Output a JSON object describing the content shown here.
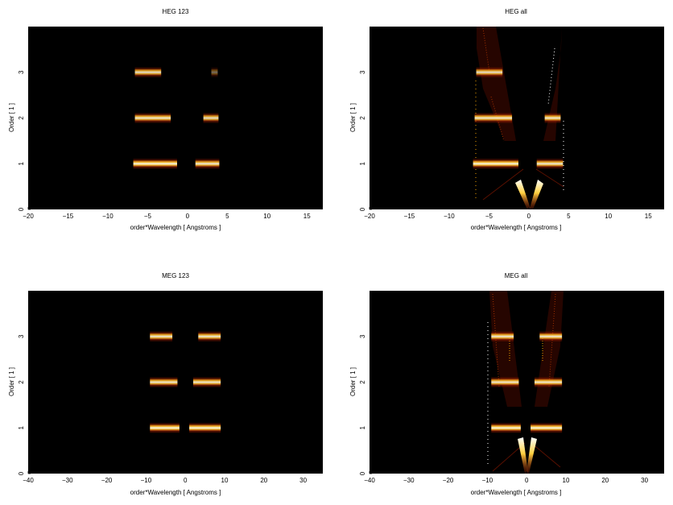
{
  "chart_data": [
    {
      "type": "heatmap",
      "title": "HEG 123",
      "xlabel": "order*Wavelength [ Angstroms ]",
      "ylabel": "Order [ 1 ]",
      "xlim": [
        -20,
        17
      ],
      "ylim": [
        0,
        4
      ],
      "xticks": [
        -20,
        -15,
        -10,
        -5,
        0,
        5,
        10,
        15
      ],
      "yticks": [
        0,
        1,
        2,
        3
      ],
      "colormap": [
        "#000000",
        "#5a0000",
        "#b02000",
        "#f07000",
        "#ffd040",
        "#ffffff"
      ],
      "bands": [
        {
          "order": 1,
          "x_start": -6.8,
          "x_end": -1.3,
          "intensity": 0.95
        },
        {
          "order": 1,
          "x_start": 1.0,
          "x_end": 4.0,
          "intensity": 0.9
        },
        {
          "order": 2,
          "x_start": -6.6,
          "x_end": -2.1,
          "intensity": 0.9
        },
        {
          "order": 2,
          "x_start": 2.0,
          "x_end": 3.9,
          "intensity": 0.85
        },
        {
          "order": 3,
          "x_start": -6.6,
          "x_end": -3.3,
          "intensity": 0.85
        },
        {
          "order": 3,
          "x_start": 3.0,
          "x_end": 3.8,
          "intensity": 0.4
        }
      ]
    },
    {
      "type": "heatmap",
      "title": "HEG all",
      "xlabel": "order*Wavelength [ Angstroms ]",
      "ylabel": "Order [ 1 ]",
      "xlim": [
        -20,
        17
      ],
      "ylim": [
        0,
        4
      ],
      "xticks": [
        -20,
        -15,
        -10,
        -5,
        0,
        5,
        10,
        15
      ],
      "yticks": [
        0,
        1,
        2,
        3
      ],
      "colormap": [
        "#000000",
        "#5a0000",
        "#b02000",
        "#f07000",
        "#ffd040",
        "#ffffff"
      ],
      "bands": [
        {
          "order": 1,
          "x_start": -7.0,
          "x_end": -1.3,
          "intensity": 0.95
        },
        {
          "order": 1,
          "x_start": 1.0,
          "x_end": 4.3,
          "intensity": 0.9
        },
        {
          "order": 2,
          "x_start": -6.8,
          "x_end": -2.1,
          "intensity": 0.9
        },
        {
          "order": 2,
          "x_start": 2.0,
          "x_end": 4.0,
          "intensity": 0.9
        },
        {
          "order": 3,
          "x_start": -6.6,
          "x_end": -3.3,
          "intensity": 0.85
        }
      ]
    },
    {
      "type": "heatmap",
      "title": "MEG 123",
      "xlabel": "order*Wavelength [ Angstroms ]",
      "ylabel": "Order [ 1 ]",
      "xlim": [
        -40,
        35
      ],
      "ylim": [
        0,
        4
      ],
      "xticks": [
        -40,
        -30,
        -20,
        -10,
        0,
        10,
        20,
        30
      ],
      "yticks": [
        0,
        1,
        2,
        3
      ],
      "colormap": [
        "#000000",
        "#5a0000",
        "#b02000",
        "#f07000",
        "#ffd040",
        "#ffffff"
      ],
      "bands": [
        {
          "order": 1,
          "x_start": -9.0,
          "x_end": -1.5,
          "intensity": 0.95
        },
        {
          "order": 1,
          "x_start": 1.0,
          "x_end": 9.0,
          "intensity": 0.95
        },
        {
          "order": 2,
          "x_start": -9.0,
          "x_end": -2.0,
          "intensity": 0.9
        },
        {
          "order": 2,
          "x_start": 2.0,
          "x_end": 9.0,
          "intensity": 0.9
        },
        {
          "order": 3,
          "x_start": -9.0,
          "x_end": -3.3,
          "intensity": 0.9
        },
        {
          "order": 3,
          "x_start": 3.3,
          "x_end": 9.0,
          "intensity": 0.9
        }
      ]
    },
    {
      "type": "heatmap",
      "title": "MEG all",
      "xlabel": "order*Wavelength [ Angstroms ]",
      "ylabel": "Order [ 1 ]",
      "xlim": [
        -40,
        35
      ],
      "ylim": [
        0,
        4
      ],
      "xticks": [
        -40,
        -30,
        -20,
        -10,
        0,
        10,
        20,
        30
      ],
      "yticks": [
        0,
        1,
        2,
        3
      ],
      "colormap": [
        "#000000",
        "#5a0000",
        "#b02000",
        "#f07000",
        "#ffd040",
        "#ffffff"
      ],
      "bands": [
        {
          "order": 1,
          "x_start": -9.0,
          "x_end": -1.5,
          "intensity": 0.95
        },
        {
          "order": 1,
          "x_start": 1.0,
          "x_end": 9.0,
          "intensity": 0.95
        },
        {
          "order": 2,
          "x_start": -9.0,
          "x_end": -2.0,
          "intensity": 0.9
        },
        {
          "order": 2,
          "x_start": 2.0,
          "x_end": 9.0,
          "intensity": 0.9
        },
        {
          "order": 3,
          "x_start": -9.0,
          "x_end": -3.3,
          "intensity": 0.9
        },
        {
          "order": 3,
          "x_start": 3.3,
          "x_end": 9.0,
          "intensity": 0.9
        }
      ]
    }
  ]
}
